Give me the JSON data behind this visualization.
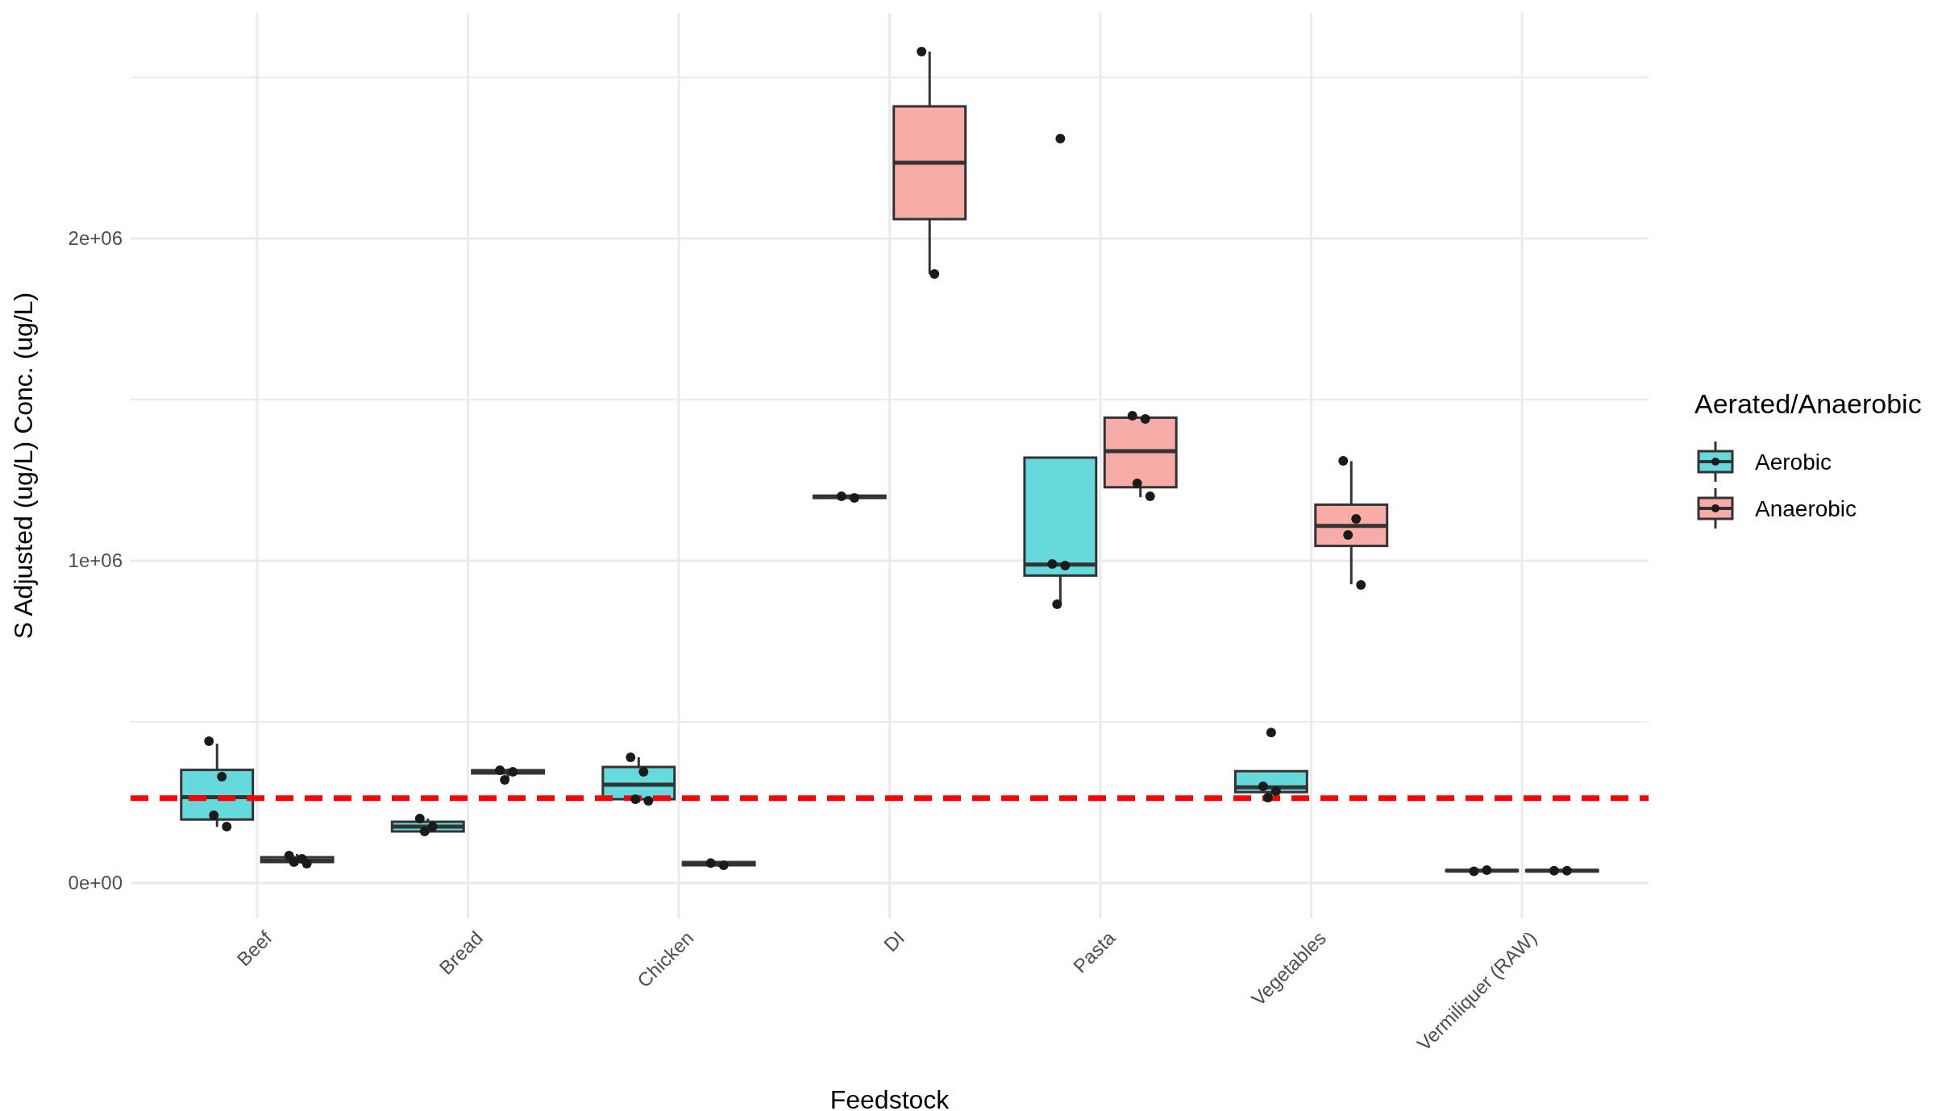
{
  "chart_data": {
    "type": "box",
    "xlabel": "Feedstock",
    "ylabel": "S Adjusted (ug/L) Conc. (ug/L)",
    "legend_title": "Aerated/Anaerobic",
    "legend": "right",
    "grid": true,
    "categories": [
      "Beef",
      "Bread",
      "Chicken",
      "DI",
      "Pasta",
      "Vegetables",
      "Vermiliquer (RAW)"
    ],
    "ylim": [
      -110000,
      2700000
    ],
    "yticks": [
      {
        "value": 0,
        "label": "0e+00"
      },
      {
        "value": 500000,
        "label": null
      },
      {
        "value": 1000000,
        "label": "1e+06"
      },
      {
        "value": 1500000,
        "label": null
      },
      {
        "value": 2000000,
        "label": "2e+06"
      },
      {
        "value": 2500000,
        "label": null
      }
    ],
    "ref_lines": [
      {
        "axis": "y",
        "value": 263000,
        "color": "#ff0000",
        "line_style": "dashed"
      }
    ],
    "series": [
      {
        "name": "Aerobic",
        "color": "#66d9dc",
        "boxes": [
          {
            "low": 174000,
            "q1": 197000,
            "median": 266000,
            "q3": 351000,
            "high": 432000
          },
          {
            "low": 155000,
            "q1": 160000,
            "median": 175000,
            "q3": 190000,
            "high": 200000
          },
          {
            "low": 250000,
            "q1": 260000,
            "median": 305000,
            "q3": 360000,
            "high": 390000
          },
          {
            "low": 1190000,
            "q1": 1195000,
            "median": 1198000,
            "q3": 1202000,
            "high": 1205000
          },
          {
            "low": 865000,
            "q1": 954000,
            "median": 988000,
            "q3": 1320000,
            "high": 1320000,
            "outliers": [
              2310000
            ]
          },
          {
            "low": 265000,
            "q1": 282000,
            "median": 297000,
            "q3": 347000,
            "high": 347000,
            "outliers": [
              467000
            ]
          },
          {
            "low": 36000,
            "q1": 37000,
            "median": 38000,
            "q3": 40000,
            "high": 41000
          }
        ]
      },
      {
        "name": "Anaerobic",
        "color": "#f8aca7",
        "boxes": [
          {
            "low": 55000,
            "q1": 65000,
            "median": 70000,
            "q3": 80000,
            "high": 90000
          },
          {
            "low": 320000,
            "q1": 340000,
            "median": 345000,
            "q3": 350000,
            "high": 355000
          },
          {
            "low": 50000,
            "q1": 55000,
            "median": 60000,
            "q3": 65000,
            "high": 67000
          },
          {
            "low": 1890000,
            "q1": 2060000,
            "median": 2235000,
            "q3": 2410000,
            "high": 2580000
          },
          {
            "low": 1197000,
            "q1": 1228000,
            "median": 1340000,
            "q3": 1444000,
            "high": 1444000
          },
          {
            "low": 927000,
            "q1": 1046000,
            "median": 1108000,
            "q3": 1174000,
            "high": 1309000
          },
          {
            "low": 35000,
            "q1": 36000,
            "median": 38000,
            "q3": 40000,
            "high": 41000
          }
        ]
      },
      {
        "type": "scatter",
        "color": "#1a1a1a",
        "x": [
          "Beef",
          "Beef",
          "Beef",
          "Beef",
          "Bread",
          "Bread",
          "Bread",
          "Chicken",
          "Chicken",
          "Chicken",
          "Chicken",
          "DI",
          "DI",
          "Pasta",
          "Pasta",
          "Pasta",
          "Vegetables",
          "Vegetables",
          "Vegetables",
          "Vermiliquer (RAW)",
          "Vermiliquer (RAW)"
        ],
        "values": [
          440000,
          330000,
          210000,
          175000,
          200000,
          175000,
          160000,
          390000,
          345000,
          260000,
          255000,
          1200000,
          1195000,
          990000,
          985000,
          865000,
          300000,
          285000,
          265000,
          36000,
          40000
        ]
      },
      {
        "type": "scatter",
        "color": "#1a1a1a",
        "x": [
          "Beef",
          "Beef",
          "Beef",
          "Beef",
          "Bread",
          "Bread",
          "Bread",
          "Chicken",
          "Chicken",
          "DI",
          "DI",
          "Pasta",
          "Pasta",
          "Pasta",
          "Pasta",
          "Vegetables",
          "Vegetables",
          "Vegetables",
          "Vegetables",
          "Vermiliquer (RAW)",
          "Vermiliquer (RAW)"
        ],
        "values": [
          85000,
          75000,
          65000,
          60000,
          350000,
          345000,
          320000,
          62000,
          55000,
          2580000,
          1890000,
          1450000,
          1440000,
          1240000,
          1200000,
          1310000,
          1130000,
          1080000,
          925000,
          38000,
          38000
        ]
      }
    ]
  }
}
